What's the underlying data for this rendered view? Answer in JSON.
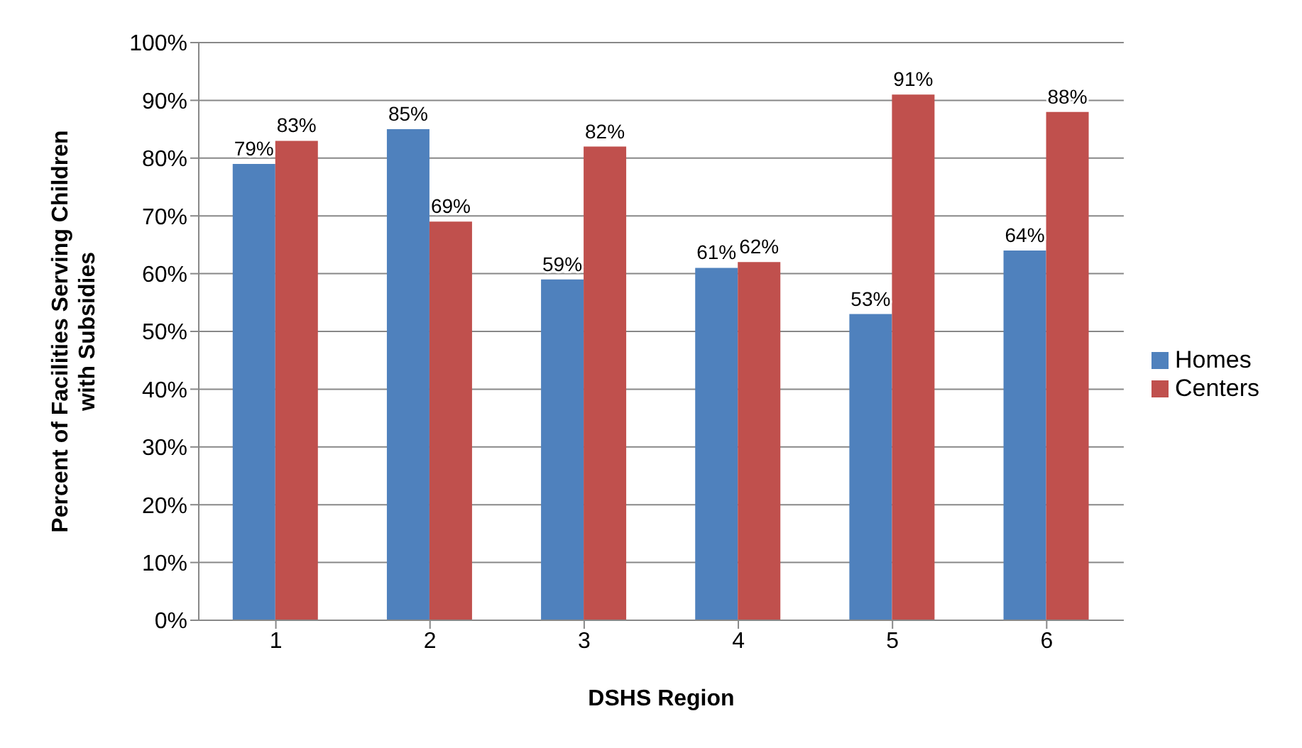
{
  "chart_data": {
    "type": "bar",
    "xlabel": "DSHS Region",
    "ylabel": "Percent of Facilities Serving Children with Subsidies",
    "categories": [
      "1",
      "2",
      "3",
      "4",
      "5",
      "6"
    ],
    "series": [
      {
        "name": "Homes",
        "color": "#4f81bd",
        "values": [
          79,
          85,
          59,
          61,
          53,
          64
        ],
        "value_labels": [
          "79%",
          "85%",
          "59%",
          "61%",
          "53%",
          "64%"
        ]
      },
      {
        "name": "Centers",
        "color": "#c0504d",
        "values": [
          83,
          69,
          82,
          62,
          91,
          88
        ],
        "value_labels": [
          "83%",
          "69%",
          "82%",
          "62%",
          "91%",
          "88%"
        ]
      }
    ],
    "ylim": [
      0,
      100
    ],
    "yticks": [
      {
        "value": 0,
        "label": "0%"
      },
      {
        "value": 10,
        "label": "10%"
      },
      {
        "value": 20,
        "label": "20%"
      },
      {
        "value": 30,
        "label": "30%"
      },
      {
        "value": 40,
        "label": "40%"
      },
      {
        "value": 50,
        "label": "50%"
      },
      {
        "value": 60,
        "label": "60%"
      },
      {
        "value": 70,
        "label": "70%"
      },
      {
        "value": 80,
        "label": "80%"
      },
      {
        "value": 90,
        "label": "90%"
      },
      {
        "value": 100,
        "label": "100%"
      }
    ],
    "grid": "y",
    "legend": "right"
  }
}
